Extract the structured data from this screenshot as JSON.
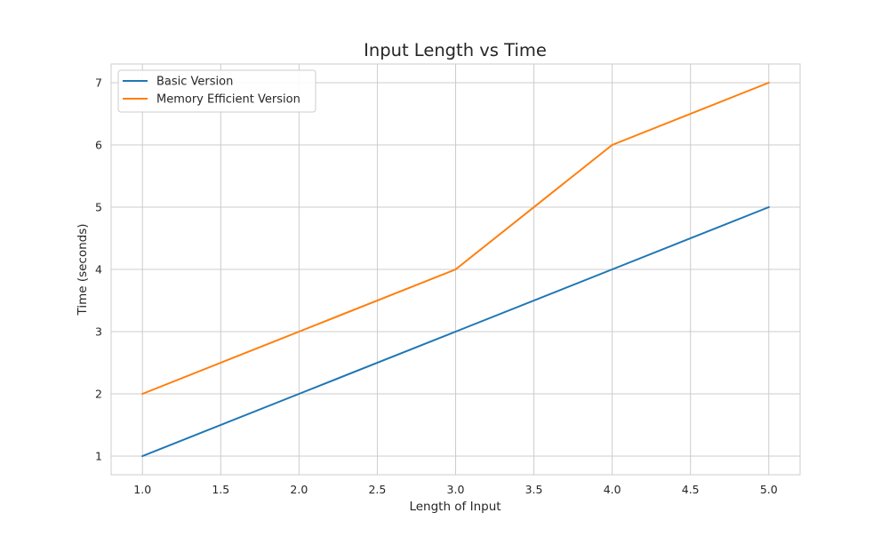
{
  "chart_data": {
    "type": "line",
    "title": "Input Length vs Time",
    "xlabel": "Length of Input",
    "ylabel": "Time (seconds)",
    "xlim": [
      0.8,
      5.2
    ],
    "ylim": [
      0.7,
      7.3
    ],
    "xticks": [
      1.0,
      1.5,
      2.0,
      2.5,
      3.0,
      3.5,
      4.0,
      4.5,
      5.0
    ],
    "xtick_labels": [
      "1.0",
      "1.5",
      "2.0",
      "2.5",
      "3.0",
      "3.5",
      "4.0",
      "4.5",
      "5.0"
    ],
    "yticks": [
      1,
      2,
      3,
      4,
      5,
      6,
      7
    ],
    "ytick_labels": [
      "1",
      "2",
      "3",
      "4",
      "5",
      "6",
      "7"
    ],
    "grid": true,
    "legend_position": "top-left",
    "series": [
      {
        "name": "Basic Version",
        "color": "#1f77b4",
        "x": [
          1,
          2,
          3,
          4,
          5
        ],
        "y": [
          1,
          2,
          3,
          4,
          5
        ]
      },
      {
        "name": "Memory Efficient Version",
        "color": "#ff7f0e",
        "x": [
          1,
          2,
          3,
          4,
          5
        ],
        "y": [
          2,
          3,
          4,
          6,
          7
        ]
      }
    ]
  }
}
